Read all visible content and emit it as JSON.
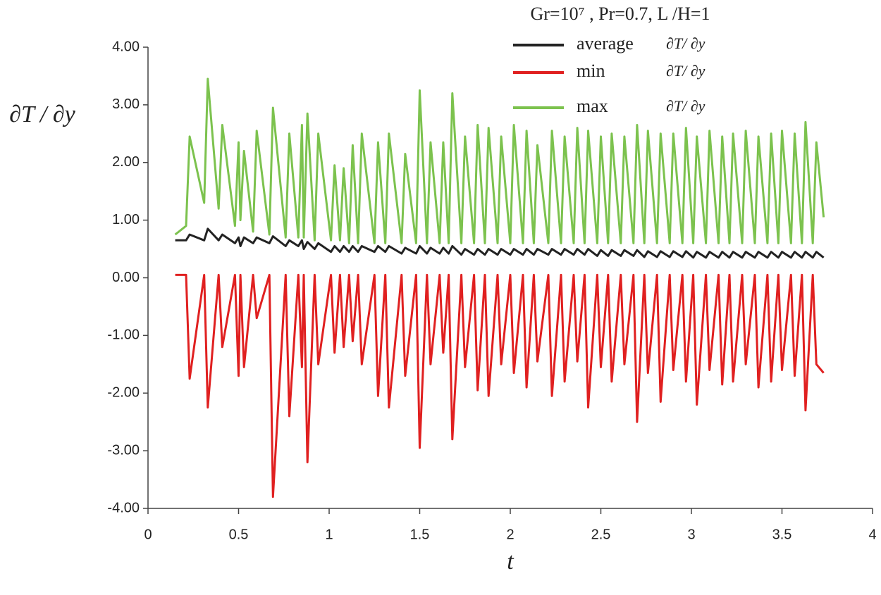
{
  "chart_data": {
    "type": "line",
    "title": "Gr=10⁷ , Pr=0.7, L /H=1",
    "x_label": "t",
    "y_label": "∂T / ∂y",
    "legend_unit": "∂T/ ∂y",
    "xlim": [
      0,
      4
    ],
    "xticks": [
      0,
      0.5,
      1,
      1.5,
      2,
      2.5,
      3,
      3.5,
      4
    ],
    "ylim": [
      -4,
      4
    ],
    "yticks": [
      {
        "value": 4,
        "label": "4.00"
      },
      {
        "value": 3,
        "label": "3.00"
      },
      {
        "value": 2,
        "label": "2.00"
      },
      {
        "value": 1,
        "label": "1.00"
      },
      {
        "value": 0,
        "label": "0.00"
      },
      {
        "value": -1,
        "label": "-1.00"
      },
      {
        "value": -2,
        "label": "-2.00"
      },
      {
        "value": -3,
        "label": "-3.00"
      },
      {
        "value": -4,
        "label": "-4.00"
      }
    ],
    "x": [
      0.15,
      0.21,
      0.23,
      0.31,
      0.33,
      0.39,
      0.41,
      0.48,
      0.5,
      0.51,
      0.53,
      0.58,
      0.6,
      0.67,
      0.69,
      0.76,
      0.78,
      0.83,
      0.85,
      0.86,
      0.88,
      0.92,
      0.94,
      1.01,
      1.03,
      1.06,
      1.08,
      1.11,
      1.13,
      1.16,
      1.18,
      1.25,
      1.27,
      1.31,
      1.33,
      1.4,
      1.42,
      1.48,
      1.5,
      1.54,
      1.56,
      1.61,
      1.63,
      1.66,
      1.68,
      1.73,
      1.75,
      1.8,
      1.82,
      1.86,
      1.88,
      1.93,
      1.95,
      2.0,
      2.02,
      2.07,
      2.09,
      2.13,
      2.15,
      2.21,
      2.23,
      2.28,
      2.3,
      2.35,
      2.37,
      2.41,
      2.43,
      2.48,
      2.5,
      2.54,
      2.56,
      2.61,
      2.63,
      2.68,
      2.7,
      2.74,
      2.76,
      2.81,
      2.83,
      2.88,
      2.9,
      2.95,
      2.97,
      3.01,
      3.03,
      3.08,
      3.1,
      3.15,
      3.17,
      3.21,
      3.23,
      3.28,
      3.3,
      3.35,
      3.37,
      3.42,
      3.44,
      3.48,
      3.5,
      3.55,
      3.57,
      3.61,
      3.63,
      3.67,
      3.69,
      3.73
    ],
    "series": [
      {
        "name": "average",
        "color": "#222222",
        "values": [
          0.65,
          0.65,
          0.75,
          0.65,
          0.85,
          0.65,
          0.75,
          0.6,
          0.7,
          0.55,
          0.7,
          0.6,
          0.7,
          0.6,
          0.72,
          0.55,
          0.65,
          0.55,
          0.65,
          0.5,
          0.62,
          0.5,
          0.6,
          0.45,
          0.55,
          0.45,
          0.55,
          0.45,
          0.55,
          0.45,
          0.55,
          0.45,
          0.55,
          0.45,
          0.55,
          0.42,
          0.52,
          0.42,
          0.55,
          0.42,
          0.52,
          0.42,
          0.52,
          0.42,
          0.55,
          0.4,
          0.5,
          0.4,
          0.5,
          0.4,
          0.5,
          0.4,
          0.5,
          0.4,
          0.5,
          0.4,
          0.5,
          0.4,
          0.5,
          0.4,
          0.5,
          0.4,
          0.5,
          0.4,
          0.5,
          0.4,
          0.5,
          0.38,
          0.48,
          0.38,
          0.48,
          0.38,
          0.48,
          0.38,
          0.48,
          0.36,
          0.46,
          0.36,
          0.46,
          0.36,
          0.46,
          0.36,
          0.46,
          0.35,
          0.45,
          0.35,
          0.45,
          0.35,
          0.45,
          0.35,
          0.45,
          0.35,
          0.45,
          0.35,
          0.45,
          0.35,
          0.45,
          0.35,
          0.45,
          0.35,
          0.45,
          0.35,
          0.45,
          0.35,
          0.45,
          0.35
        ]
      },
      {
        "name": "min",
        "color": "#e02020",
        "values": [
          0.05,
          0.05,
          -1.75,
          0.05,
          -2.25,
          0.05,
          -1.2,
          0.05,
          -1.7,
          0.05,
          -1.55,
          0.05,
          -0.7,
          0.05,
          -3.8,
          0.05,
          -2.4,
          0.05,
          -1.55,
          0.05,
          -3.2,
          0.05,
          -1.5,
          0.05,
          -1.3,
          0.05,
          -1.2,
          0.05,
          -1.1,
          0.05,
          -1.5,
          0.05,
          -2.05,
          0.05,
          -2.25,
          0.05,
          -1.7,
          0.05,
          -2.95,
          0.05,
          -1.5,
          0.05,
          -1.3,
          0.05,
          -2.8,
          0.05,
          -1.55,
          0.05,
          -1.95,
          0.05,
          -2.05,
          0.05,
          -1.5,
          0.05,
          -1.65,
          0.05,
          -1.9,
          0.05,
          -1.45,
          0.05,
          -2.05,
          0.05,
          -1.8,
          0.05,
          -1.45,
          0.05,
          -2.25,
          0.05,
          -1.55,
          0.05,
          -1.8,
          0.05,
          -1.5,
          0.05,
          -2.5,
          0.05,
          -1.65,
          0.05,
          -2.15,
          0.05,
          -1.6,
          0.05,
          -1.8,
          0.05,
          -2.2,
          0.05,
          -1.6,
          0.05,
          -1.85,
          0.05,
          -1.8,
          0.05,
          -1.5,
          0.05,
          -1.9,
          0.05,
          -1.8,
          0.05,
          -1.6,
          0.05,
          -1.7,
          0.05,
          -2.3,
          0.05,
          -1.5,
          -1.65
        ]
      },
      {
        "name": "max",
        "color": "#7cc24e",
        "values": [
          0.75,
          0.9,
          2.45,
          1.3,
          3.45,
          1.2,
          2.65,
          0.9,
          2.35,
          1.0,
          2.2,
          0.8,
          2.55,
          0.75,
          2.95,
          0.7,
          2.5,
          0.7,
          2.65,
          0.7,
          2.85,
          0.65,
          2.5,
          0.65,
          1.95,
          0.65,
          1.9,
          0.6,
          2.3,
          0.6,
          2.5,
          0.6,
          2.35,
          0.6,
          2.5,
          0.6,
          2.15,
          0.6,
          3.25,
          0.6,
          2.35,
          0.6,
          2.35,
          0.6,
          3.2,
          0.6,
          2.45,
          0.6,
          2.65,
          0.6,
          2.6,
          0.6,
          2.45,
          0.6,
          2.65,
          0.6,
          2.55,
          0.6,
          2.3,
          0.6,
          2.55,
          0.6,
          2.45,
          0.6,
          2.6,
          0.6,
          2.55,
          0.6,
          2.45,
          0.6,
          2.5,
          0.6,
          2.45,
          0.6,
          2.65,
          0.6,
          2.55,
          0.6,
          2.5,
          0.6,
          2.5,
          0.6,
          2.6,
          0.6,
          2.45,
          0.6,
          2.55,
          0.6,
          2.45,
          0.6,
          2.5,
          0.6,
          2.55,
          0.6,
          2.45,
          0.6,
          2.5,
          0.6,
          2.55,
          0.6,
          2.5,
          0.6,
          2.7,
          0.6,
          2.35,
          1.05
        ]
      }
    ]
  }
}
